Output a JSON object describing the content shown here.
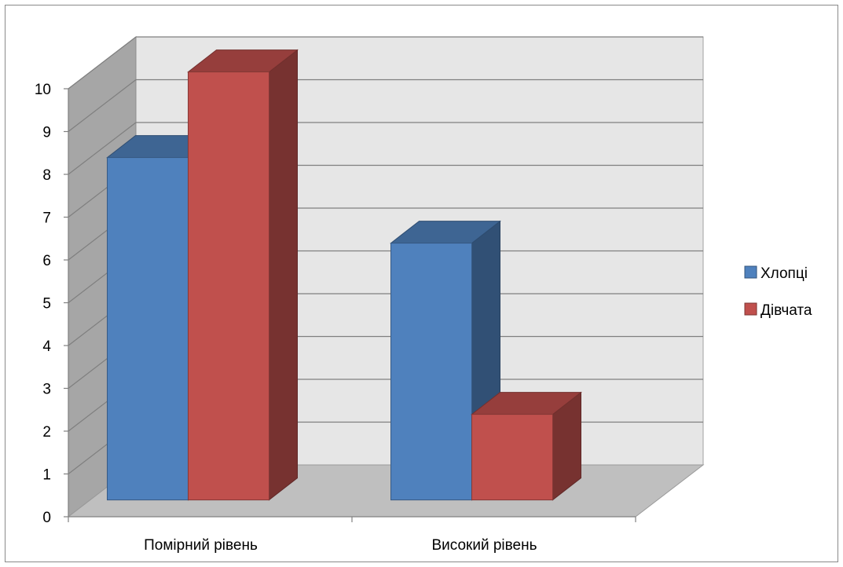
{
  "chart_data": {
    "type": "bar",
    "style": "3d-clustered-column",
    "categories": [
      "Помірний рівень",
      "Високий рівень"
    ],
    "series": [
      {
        "name": "Хлопці",
        "values": [
          8,
          6
        ],
        "color": "#4f81bd"
      },
      {
        "name": "Дівчата",
        "values": [
          10,
          2
        ],
        "color": "#c0504d"
      }
    ],
    "ylim": [
      0,
      10
    ],
    "yticks": [
      "0",
      "1",
      "2",
      "3",
      "4",
      "5",
      "6",
      "7",
      "8",
      "9",
      "10"
    ],
    "grid": true,
    "legend_position": "right",
    "title": "",
    "xlabel": "",
    "ylabel": ""
  }
}
